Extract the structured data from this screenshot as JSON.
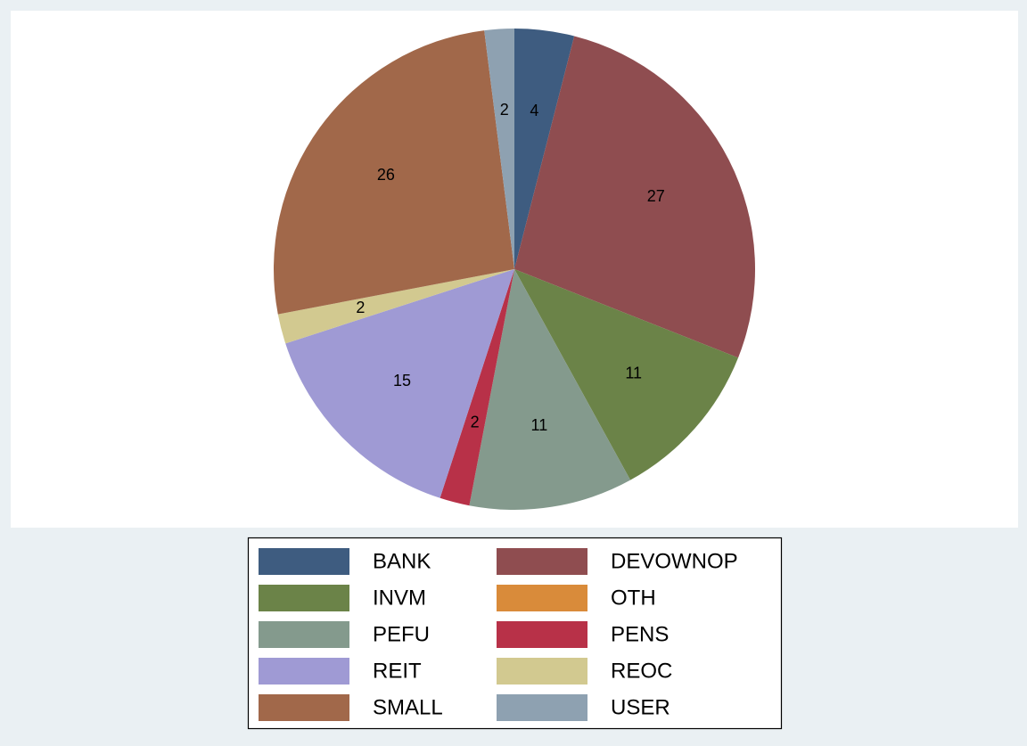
{
  "chart_data": {
    "type": "pie",
    "categories": [
      "BANK",
      "DEVOWNOP",
      "INVM",
      "OTH",
      "PEFU",
      "PENS",
      "REIT",
      "REOC",
      "SMALL",
      "USER"
    ],
    "values": [
      4,
      27,
      11,
      0,
      11,
      2,
      15,
      2,
      26,
      2
    ],
    "colors": [
      "#3e5c80",
      "#8f4d50",
      "#6b8348",
      "#d98b3a",
      "#849a8d",
      "#b83148",
      "#9f9ad4",
      "#d2c990",
      "#a1684a",
      "#8ea1b1"
    ],
    "legend": "bottom"
  }
}
